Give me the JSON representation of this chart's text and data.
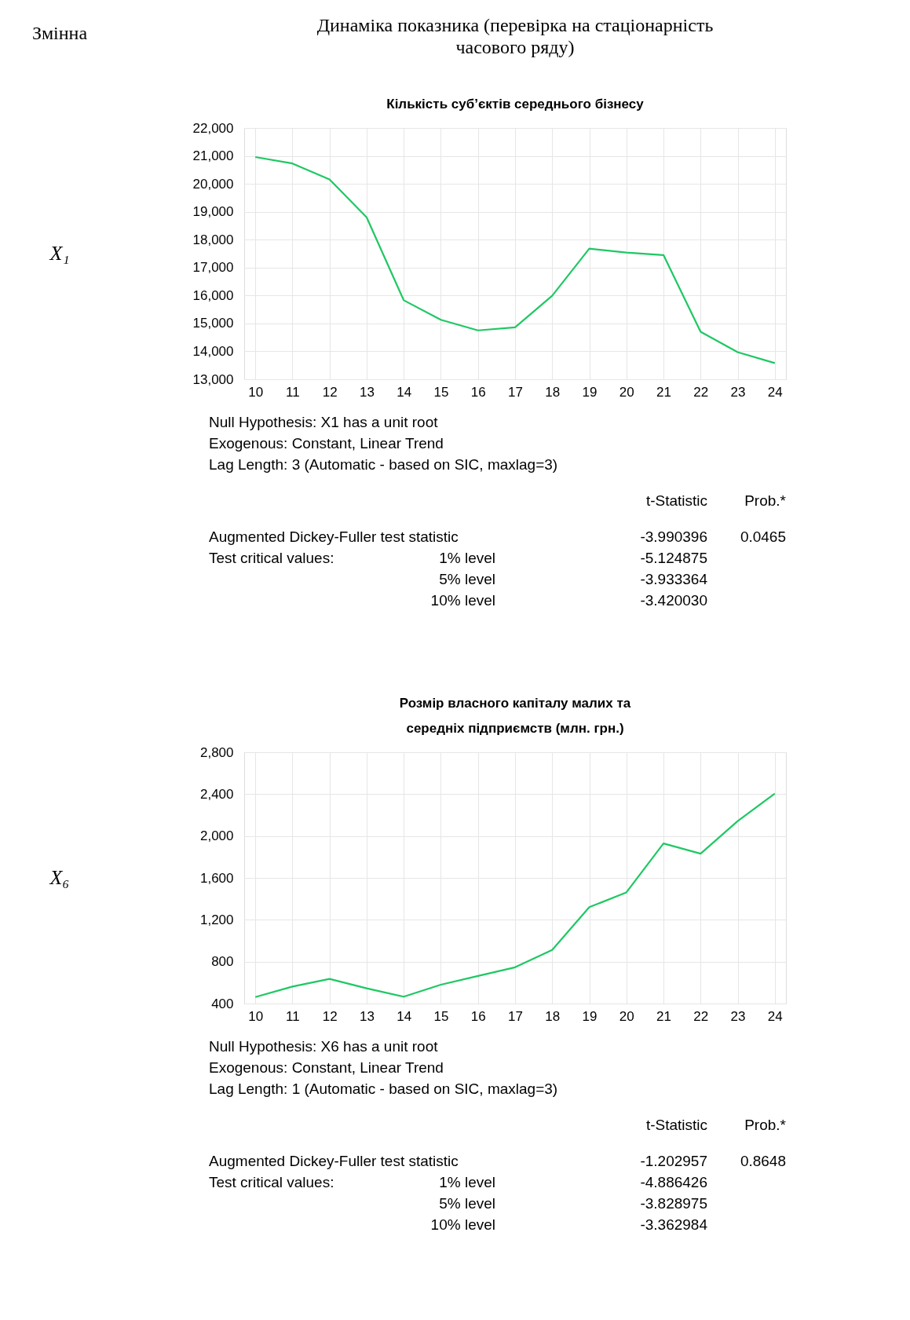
{
  "chart_data": [
    {
      "type": "line",
      "title": "Кількість суб’єктів середнього бізнесу",
      "categories": [
        "10",
        "11",
        "12",
        "13",
        "14",
        "15",
        "16",
        "17",
        "18",
        "19",
        "20",
        "21",
        "22",
        "23",
        "24"
      ],
      "series": [
        {
          "color": "#1ec863",
          "values": [
            20960,
            20730,
            20160,
            18800,
            15830,
            15130,
            14750,
            14860,
            15990,
            17680,
            17540,
            17450,
            14700,
            13970,
            13580
          ]
        }
      ],
      "ylim": [
        13000,
        22000
      ],
      "yticks": [
        {
          "value": 13000,
          "label": "13,000"
        },
        {
          "value": 14000,
          "label": "14,000"
        },
        {
          "value": 15000,
          "label": "15,000"
        },
        {
          "value": 16000,
          "label": "16,000"
        },
        {
          "value": 17000,
          "label": "17,000"
        },
        {
          "value": 18000,
          "label": "18,000"
        },
        {
          "value": 19000,
          "label": "19,000"
        },
        {
          "value": 20000,
          "label": "20,000"
        },
        {
          "value": 21000,
          "label": "21,000"
        },
        {
          "value": 22000,
          "label": "22,000"
        }
      ],
      "grid": true,
      "annotations": [
        "Змінна",
        "Динаміка показника (перевірка на стаціонарність часового ряду)",
        "X₁",
        "Null Hypothesis: X1 has a unit root",
        "Exogenous: Constant, Linear Trend",
        "Lag Length: 3 (Automatic - based on SIC, maxlag=3)",
        "t-Statistic",
        "Prob.*",
        "Augmented Dickey-Fuller test statistic",
        "-3.990396",
        "0.0465",
        "Test critical values:",
        "1% level",
        "-5.124875",
        "5% level",
        "-3.933364",
        "10% level",
        "-3.420030"
      ]
    },
    {
      "type": "line",
      "title": "Розмір власного капіталу малих та середніх підприємств (млн. грн.)",
      "categories": [
        "10",
        "11",
        "12",
        "13",
        "14",
        "15",
        "16",
        "17",
        "18",
        "19",
        "20",
        "21",
        "22",
        "23",
        "24"
      ],
      "series": [
        {
          "color": "#1ec863",
          "values": [
            462,
            562,
            635,
            545,
            466,
            580,
            663,
            746,
            912,
            1320,
            1462,
            1929,
            1832,
            2143,
            2406
          ]
        }
      ],
      "ylim": [
        400,
        2800
      ],
      "yticks": [
        400,
        800,
        {
          "value": 1200,
          "label": "1,200"
        },
        {
          "value": 1600,
          "label": "1,600"
        },
        {
          "value": 2000,
          "label": "2,000"
        },
        {
          "value": 2400,
          "label": "2,400"
        },
        {
          "value": 2800,
          "label": "2,800"
        }
      ],
      "grid": true,
      "annotations": [
        "X₆",
        "Null Hypothesis: X6 has a unit root",
        "Exogenous: Constant, Linear Trend",
        "Lag Length: 1 (Automatic - based on SIC, maxlag=3)",
        "t-Statistic",
        "Prob.*",
        "Augmented Dickey-Fuller test statistic",
        "-1.202957",
        "0.8648",
        "Test critical values:",
        "1% level",
        "-4.886426",
        "5% level",
        "-3.828975",
        "10% level",
        "-3.362984"
      ]
    }
  ]
}
